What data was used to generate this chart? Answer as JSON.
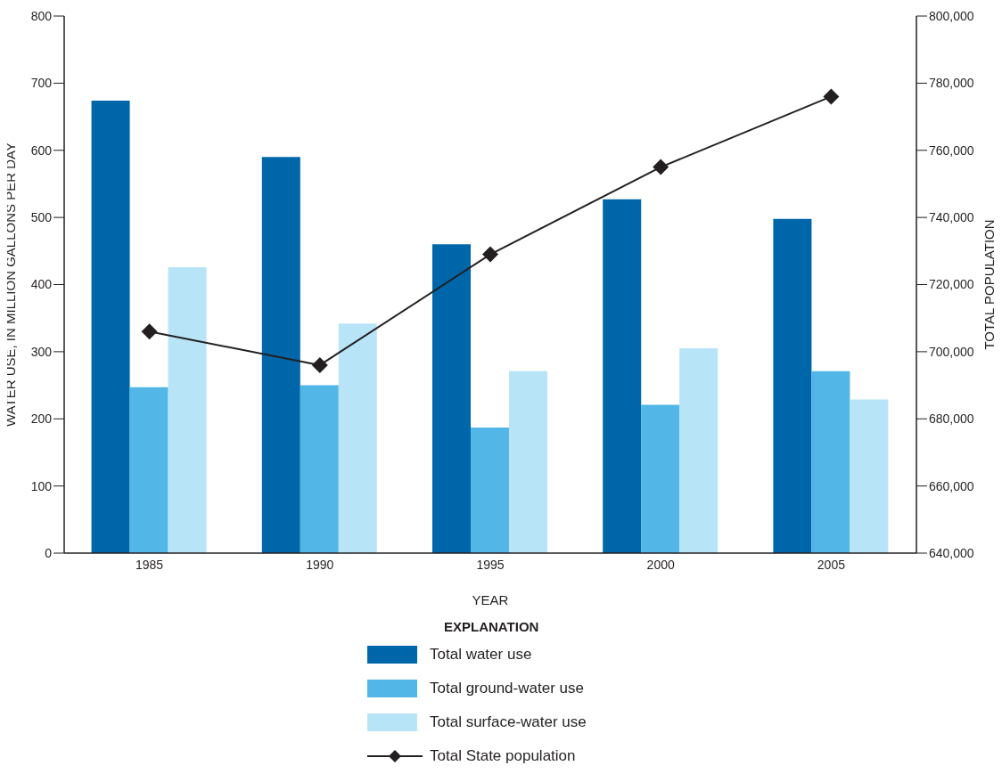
{
  "chart_data": {
    "type": "bar",
    "xlabel": "YEAR",
    "ylabel": "WATER USE, IN MILLION GALLONS PER DAY",
    "y2label": "TOTAL POPULATION",
    "legend_title": "EXPLANATION",
    "legend": "bottom",
    "marker": "diamond",
    "line_style": "solid",
    "grid": false,
    "categories": [
      "1985",
      "1990",
      "1995",
      "2000",
      "2005"
    ],
    "series": [
      {
        "name": "Total water use",
        "color": "#0066aa",
        "values": [
          674,
          590,
          460,
          527,
          498
        ]
      },
      {
        "name": "Total ground-water use",
        "color": "#52b6e6",
        "values": [
          247,
          250,
          187,
          221,
          271
        ]
      },
      {
        "name": "Total surface-water use",
        "color": "#b8e4f8",
        "values": [
          426,
          342,
          271,
          305,
          229
        ]
      },
      {
        "name": "Total State population",
        "type": "line",
        "axis": "y2",
        "color": "#231f20",
        "values": [
          706000,
          696000,
          729000,
          755000,
          776000
        ]
      }
    ],
    "ylim": [
      0,
      800
    ],
    "yticks": [
      0,
      100,
      200,
      300,
      400,
      500,
      600,
      700,
      800
    ],
    "y2lim": [
      640000,
      800000
    ],
    "y2ticks": [
      {
        "value": 640000,
        "label": "640,000"
      },
      {
        "value": 660000,
        "label": "660,000"
      },
      {
        "value": 680000,
        "label": "680,000"
      },
      {
        "value": 700000,
        "label": "700,000"
      },
      {
        "value": 720000,
        "label": "720,000"
      },
      {
        "value": 740000,
        "label": "740,000"
      },
      {
        "value": 760000,
        "label": "760,000"
      },
      {
        "value": 780000,
        "label": "780,000"
      },
      {
        "value": 800000,
        "label": "800,000"
      }
    ]
  }
}
